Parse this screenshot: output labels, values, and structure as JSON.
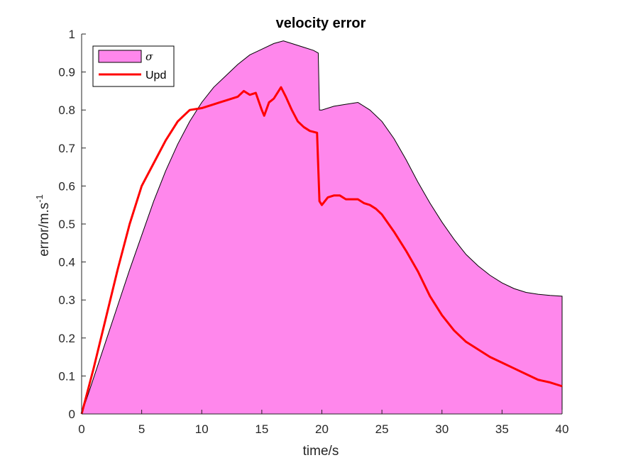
{
  "chart_data": {
    "type": "area",
    "title": "velocity error",
    "xlabel": "time/s",
    "ylabel": "error/m.s",
    "ylabel_superscript": "-1",
    "xlim": [
      0,
      40
    ],
    "ylim": [
      0,
      1
    ],
    "x_ticks": [
      "0",
      "5",
      "10",
      "15",
      "20",
      "25",
      "30",
      "35",
      "40"
    ],
    "y_ticks": [
      "0",
      "0.1",
      "0.2",
      "0.3",
      "0.4",
      "0.5",
      "0.6",
      "0.7",
      "0.8",
      "0.9",
      "1"
    ],
    "grid": false,
    "legend_position": "top-left",
    "series": [
      {
        "name": "σ",
        "kind": "area",
        "color": "#ff87ec",
        "edge_color": "#000000",
        "x": [
          0,
          1,
          2,
          3,
          4,
          5,
          6,
          7,
          8,
          9,
          10,
          11,
          12,
          13,
          14,
          15,
          16,
          16.8,
          17.5,
          18.5,
          19.3,
          19.7,
          19.8,
          20,
          21,
          22,
          23,
          24,
          25,
          26,
          27,
          28,
          29,
          30,
          31,
          32,
          33,
          34,
          35,
          36,
          37,
          38,
          39,
          40
        ],
        "values": [
          0,
          0.095,
          0.19,
          0.285,
          0.38,
          0.47,
          0.56,
          0.64,
          0.71,
          0.77,
          0.82,
          0.86,
          0.89,
          0.92,
          0.945,
          0.96,
          0.975,
          0.982,
          0.975,
          0.965,
          0.957,
          0.95,
          0.8,
          0.8,
          0.81,
          0.815,
          0.82,
          0.8,
          0.77,
          0.725,
          0.67,
          0.61,
          0.555,
          0.505,
          0.46,
          0.42,
          0.39,
          0.365,
          0.345,
          0.33,
          0.32,
          0.315,
          0.312,
          0.31
        ]
      },
      {
        "name": "Upd",
        "kind": "line",
        "color": "#ff0000",
        "x": [
          0,
          1,
          2,
          3,
          4,
          5,
          6,
          7,
          8,
          9,
          10,
          11,
          11.5,
          12,
          13,
          13.5,
          14,
          14.5,
          15,
          15.2,
          15.6,
          16,
          16.6,
          17,
          17.5,
          18,
          18.5,
          19,
          19.6,
          19.8,
          20,
          20.5,
          21,
          21.5,
          22,
          22.5,
          23,
          23.5,
          24,
          24.5,
          25,
          26,
          27,
          28,
          29,
          30,
          31,
          32,
          33,
          34,
          35,
          36,
          37,
          38,
          39,
          40
        ],
        "values": [
          0,
          0.12,
          0.25,
          0.38,
          0.5,
          0.6,
          0.66,
          0.72,
          0.77,
          0.8,
          0.805,
          0.815,
          0.82,
          0.825,
          0.835,
          0.85,
          0.84,
          0.845,
          0.8,
          0.785,
          0.82,
          0.83,
          0.86,
          0.835,
          0.8,
          0.77,
          0.755,
          0.745,
          0.74,
          0.56,
          0.55,
          0.57,
          0.575,
          0.575,
          0.565,
          0.565,
          0.565,
          0.555,
          0.55,
          0.54,
          0.525,
          0.48,
          0.43,
          0.375,
          0.31,
          0.26,
          0.22,
          0.19,
          0.17,
          0.15,
          0.135,
          0.12,
          0.105,
          0.09,
          0.083,
          0.073
        ]
      }
    ]
  }
}
